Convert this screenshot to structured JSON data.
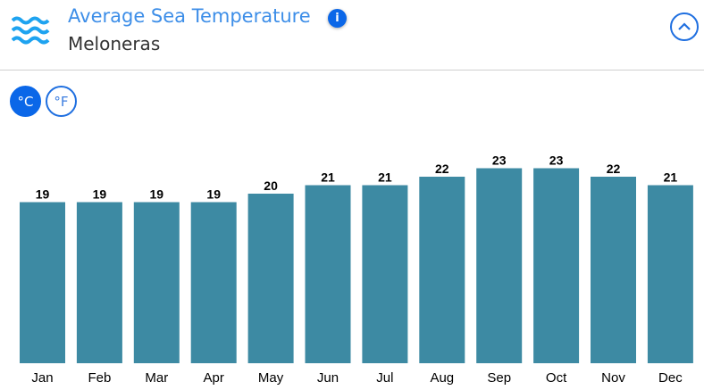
{
  "header": {
    "title": "Average Sea Temperature",
    "subtitle": "Meloneras",
    "info_icon": "i",
    "icon": "waves-icon",
    "collapse_icon": "chevron-up-icon"
  },
  "units": {
    "celsius": "°C",
    "fahrenheit": "°F",
    "selected": "celsius"
  },
  "colors": {
    "bar": "#3d8aa3",
    "accent": "#0b67e8",
    "title": "#3d8ee8"
  },
  "chart_data": {
    "type": "bar",
    "categories": [
      "Jan",
      "Feb",
      "Mar",
      "Apr",
      "May",
      "Jun",
      "Jul",
      "Aug",
      "Sep",
      "Oct",
      "Nov",
      "Dec"
    ],
    "values": [
      19,
      19,
      19,
      19,
      20,
      21,
      21,
      22,
      23,
      23,
      22,
      21
    ],
    "unit": "°C",
    "ylim": [
      0,
      23
    ],
    "grid": false,
    "data_labels": true
  }
}
